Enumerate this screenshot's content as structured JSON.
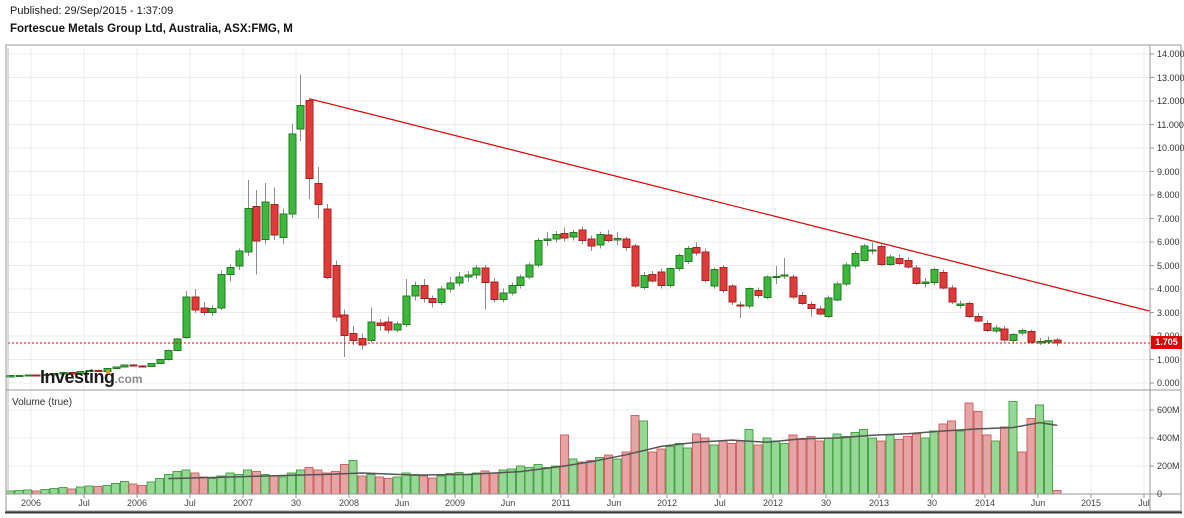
{
  "header": {
    "published": "Published: 29/Sep/2015 - 1:37:09",
    "title": "Fortescue Metals Group Ltd, Australia, ASX:FMG, M"
  },
  "watermark": {
    "brand": "Investing",
    "domain": ".com"
  },
  "volume_pane_label": "Volume (true)",
  "price_axis": {
    "ticks": [
      "14.000",
      "13.000",
      "12.000",
      "11.000",
      "10.000",
      "9.000",
      "8.000",
      "7.000",
      "6.000",
      "5.000",
      "4.000",
      "3.000",
      "2.000",
      "1.000",
      "0.000"
    ],
    "last_price_label": "1.705"
  },
  "volume_axis": {
    "ticks": [
      {
        "label": "600M",
        "value": 600
      },
      {
        "label": "400M",
        "value": 400
      },
      {
        "label": "200M",
        "value": 200
      },
      {
        "label": "0",
        "value": 0
      }
    ]
  },
  "x_axis": {
    "labels": [
      "2006",
      "Jul",
      "2006",
      "Jul",
      "2007",
      "30",
      "2008",
      "Jun",
      "2009",
      "Jun",
      "2011",
      "Jun",
      "2012",
      "Jul",
      "2012",
      "30",
      "2013",
      "30",
      "2014",
      "Jun",
      "2015",
      "Jul"
    ]
  },
  "colors": {
    "candle_up": "#3cb93c",
    "candle_up_border": "#1f7d1f",
    "candle_down": "#e03a3a",
    "candle_down_border": "#a82222",
    "vol_up": "#95d895",
    "vol_up_border": "#4aa54a",
    "vol_down": "#e6a4a4",
    "vol_down_border": "#c66",
    "wick": "#8c8c8c",
    "grid": "#ececec",
    "frame": "#999999",
    "trend": "#dd0000",
    "price_line": "#e00000",
    "tag_bg": "#e00000",
    "ma": "#555555"
  },
  "chart_data": {
    "type": "candlestick+volume",
    "title": "Fortescue Metals Group Ltd, Australia, ASX:FMG, M",
    "interval": "Monthly",
    "price_ylim": [
      0,
      14
    ],
    "volume_ylim_millions": [
      0,
      700
    ],
    "last_price": 1.705,
    "trendline": {
      "start_index": 34,
      "start_price": 12.1,
      "end_price_at_right_edge": 3.06
    },
    "candles_ohlc": [
      [
        0.3,
        0.33,
        0.27,
        0.31
      ],
      [
        0.31,
        0.34,
        0.29,
        0.32
      ],
      [
        0.32,
        0.36,
        0.3,
        0.35
      ],
      [
        0.35,
        0.36,
        0.31,
        0.33
      ],
      [
        0.33,
        0.38,
        0.32,
        0.37
      ],
      [
        0.37,
        0.41,
        0.35,
        0.4
      ],
      [
        0.4,
        0.45,
        0.38,
        0.44
      ],
      [
        0.44,
        0.46,
        0.4,
        0.41
      ],
      [
        0.41,
        0.49,
        0.4,
        0.48
      ],
      [
        0.48,
        0.56,
        0.46,
        0.54
      ],
      [
        0.54,
        0.57,
        0.48,
        0.5
      ],
      [
        0.5,
        0.63,
        0.49,
        0.61
      ],
      [
        0.61,
        0.71,
        0.59,
        0.69
      ],
      [
        0.69,
        0.79,
        0.66,
        0.77
      ],
      [
        0.77,
        0.81,
        0.7,
        0.73
      ],
      [
        0.73,
        0.76,
        0.65,
        0.7
      ],
      [
        0.7,
        0.86,
        0.68,
        0.84
      ],
      [
        0.84,
        1.02,
        0.82,
        0.99
      ],
      [
        0.99,
        1.42,
        0.96,
        1.38
      ],
      [
        1.38,
        1.92,
        1.33,
        1.88
      ],
      [
        1.94,
        3.92,
        1.88,
        3.67
      ],
      [
        3.67,
        4.0,
        2.98,
        3.11
      ],
      [
        3.2,
        3.45,
        2.88,
        3.0
      ],
      [
        3.0,
        3.32,
        2.86,
        3.16
      ],
      [
        3.2,
        4.78,
        3.1,
        4.62
      ],
      [
        4.62,
        5.05,
        4.32,
        4.92
      ],
      [
        4.97,
        5.72,
        4.8,
        5.62
      ],
      [
        5.58,
        8.64,
        5.4,
        7.43
      ],
      [
        7.52,
        8.22,
        4.62,
        6.05
      ],
      [
        6.1,
        8.52,
        5.92,
        7.7
      ],
      [
        7.6,
        8.32,
        6.08,
        6.3
      ],
      [
        6.2,
        7.42,
        5.92,
        7.2
      ],
      [
        7.2,
        11.02,
        7.02,
        10.6
      ],
      [
        10.8,
        13.12,
        10.3,
        11.8
      ],
      [
        12.02,
        12.1,
        7.82,
        8.7
      ],
      [
        8.5,
        9.2,
        7.0,
        7.6
      ],
      [
        7.4,
        7.62,
        4.42,
        4.5
      ],
      [
        5.0,
        5.22,
        2.62,
        2.8
      ],
      [
        2.9,
        3.12,
        1.1,
        2.02
      ],
      [
        2.1,
        2.42,
        1.62,
        1.8
      ],
      [
        1.9,
        2.1,
        1.42,
        1.62
      ],
      [
        1.8,
        3.22,
        1.72,
        2.6
      ],
      [
        2.55,
        2.72,
        2.22,
        2.45
      ],
      [
        2.6,
        2.82,
        2.12,
        2.26
      ],
      [
        2.26,
        2.62,
        2.16,
        2.52
      ],
      [
        2.48,
        4.42,
        2.38,
        3.7
      ],
      [
        3.7,
        4.32,
        3.52,
        4.15
      ],
      [
        4.15,
        4.42,
        3.42,
        3.6
      ],
      [
        3.6,
        3.72,
        3.22,
        3.42
      ],
      [
        3.42,
        4.12,
        3.32,
        4.0
      ],
      [
        4.0,
        4.52,
        3.86,
        4.26
      ],
      [
        4.26,
        4.72,
        4.12,
        4.52
      ],
      [
        4.52,
        4.77,
        4.32,
        4.6
      ],
      [
        4.6,
        5.02,
        4.42,
        4.9
      ],
      [
        4.9,
        5.02,
        3.12,
        4.28
      ],
      [
        4.3,
        4.46,
        3.42,
        3.56
      ],
      [
        3.56,
        4.02,
        3.42,
        3.82
      ],
      [
        3.82,
        4.27,
        3.72,
        4.14
      ],
      [
        4.14,
        4.62,
        4.02,
        4.52
      ],
      [
        4.52,
        5.12,
        4.42,
        5.02
      ],
      [
        5.02,
        6.17,
        4.92,
        6.07
      ],
      [
        6.07,
        6.42,
        5.82,
        6.12
      ],
      [
        6.12,
        6.47,
        5.97,
        6.32
      ],
      [
        6.37,
        6.62,
        6.02,
        6.17
      ],
      [
        6.22,
        6.52,
        6.07,
        6.4
      ],
      [
        6.52,
        6.67,
        5.92,
        6.07
      ],
      [
        6.12,
        6.27,
        5.62,
        5.82
      ],
      [
        5.87,
        6.42,
        5.72,
        6.32
      ],
      [
        6.3,
        6.52,
        5.97,
        6.07
      ],
      [
        6.12,
        6.42,
        5.87,
        6.14
      ],
      [
        6.12,
        6.22,
        5.62,
        5.77
      ],
      [
        5.82,
        5.92,
        4.07,
        4.12
      ],
      [
        4.07,
        4.72,
        3.97,
        4.57
      ],
      [
        4.62,
        4.77,
        4.27,
        4.34
      ],
      [
        4.72,
        4.87,
        4.02,
        4.14
      ],
      [
        4.14,
        4.92,
        4.07,
        4.87
      ],
      [
        4.87,
        5.52,
        4.77,
        5.42
      ],
      [
        5.17,
        5.82,
        5.07,
        5.72
      ],
      [
        5.77,
        5.97,
        5.42,
        5.54
      ],
      [
        5.57,
        5.72,
        4.27,
        4.37
      ],
      [
        4.12,
        4.92,
        4.02,
        4.82
      ],
      [
        4.92,
        5.02,
        3.82,
        3.94
      ],
      [
        4.12,
        4.22,
        3.32,
        3.44
      ],
      [
        3.32,
        3.47,
        2.77,
        3.3
      ],
      [
        3.27,
        4.07,
        3.17,
        4.02
      ],
      [
        3.94,
        4.07,
        3.62,
        3.72
      ],
      [
        3.64,
        4.57,
        3.57,
        4.52
      ],
      [
        4.52,
        4.97,
        4.22,
        4.54
      ],
      [
        4.57,
        5.32,
        4.42,
        4.6
      ],
      [
        4.52,
        4.62,
        3.57,
        3.67
      ],
      [
        3.72,
        3.87,
        3.32,
        3.39
      ],
      [
        3.34,
        3.47,
        2.82,
        3.17
      ],
      [
        3.14,
        3.27,
        2.87,
        2.94
      ],
      [
        2.82,
        3.72,
        2.77,
        3.62
      ],
      [
        3.54,
        4.32,
        3.47,
        4.22
      ],
      [
        4.22,
        5.12,
        4.12,
        5.02
      ],
      [
        4.97,
        5.62,
        4.87,
        5.52
      ],
      [
        5.22,
        5.92,
        5.17,
        5.82
      ],
      [
        5.62,
        5.97,
        5.47,
        5.67
      ],
      [
        5.8,
        5.92,
        4.97,
        5.04
      ],
      [
        5.04,
        5.47,
        4.97,
        5.37
      ],
      [
        5.3,
        5.47,
        5.02,
        5.08
      ],
      [
        5.22,
        5.37,
        4.87,
        4.94
      ],
      [
        4.9,
        5.02,
        4.17,
        4.24
      ],
      [
        4.24,
        4.47,
        4.07,
        4.3
      ],
      [
        4.27,
        4.92,
        4.17,
        4.84
      ],
      [
        4.7,
        4.82,
        3.97,
        4.04
      ],
      [
        4.04,
        4.17,
        3.37,
        3.44
      ],
      [
        3.3,
        3.52,
        3.17,
        3.36
      ],
      [
        3.38,
        3.47,
        2.77,
        2.84
      ],
      [
        2.84,
        2.97,
        2.57,
        2.64
      ],
      [
        2.54,
        2.67,
        2.17,
        2.24
      ],
      [
        2.22,
        2.47,
        2.12,
        2.34
      ],
      [
        2.3,
        2.42,
        1.77,
        1.84
      ],
      [
        1.8,
        2.12,
        1.72,
        2.07
      ],
      [
        2.12,
        2.32,
        2.02,
        2.24
      ],
      [
        2.2,
        2.27,
        1.67,
        1.74
      ],
      [
        1.72,
        1.92,
        1.62,
        1.76
      ],
      [
        1.76,
        1.97,
        1.67,
        1.8
      ],
      [
        1.82,
        1.92,
        1.57,
        1.705
      ]
    ],
    "volumes_millions": [
      20,
      24,
      28,
      22,
      32,
      38,
      45,
      36,
      50,
      58,
      52,
      62,
      75,
      88,
      70,
      60,
      85,
      110,
      140,
      160,
      170,
      150,
      120,
      110,
      130,
      150,
      140,
      170,
      160,
      140,
      130,
      120,
      150,
      170,
      190,
      170,
      150,
      160,
      210,
      240,
      130,
      140,
      120,
      110,
      120,
      150,
      140,
      130,
      115,
      130,
      145,
      155,
      135,
      150,
      165,
      150,
      170,
      180,
      200,
      190,
      210,
      190,
      200,
      420,
      250,
      230,
      240,
      260,
      280,
      250,
      300,
      560,
      520,
      300,
      320,
      340,
      360,
      330,
      430,
      400,
      350,
      380,
      360,
      380,
      460,
      350,
      400,
      380,
      360,
      420,
      390,
      410,
      380,
      400,
      430,
      410,
      440,
      460,
      400,
      380,
      420,
      390,
      410,
      430,
      400,
      450,
      500,
      520,
      450,
      650,
      590,
      420,
      380,
      480,
      660,
      300,
      540,
      635,
      520,
      25
    ],
    "volume_color_overrides": {
      "39": "g",
      "115": "r"
    },
    "volume_ma_points": [
      [
        18,
        110
      ],
      [
        24,
        120
      ],
      [
        30,
        130
      ],
      [
        36,
        140
      ],
      [
        40,
        150
      ],
      [
        46,
        135
      ],
      [
        52,
        140
      ],
      [
        58,
        160
      ],
      [
        63,
        200
      ],
      [
        66,
        230
      ],
      [
        70,
        280
      ],
      [
        74,
        340
      ],
      [
        78,
        370
      ],
      [
        82,
        385
      ],
      [
        86,
        370
      ],
      [
        90,
        395
      ],
      [
        94,
        400
      ],
      [
        98,
        420
      ],
      [
        102,
        430
      ],
      [
        106,
        450
      ],
      [
        110,
        465
      ],
      [
        114,
        475
      ],
      [
        117,
        510
      ],
      [
        119,
        490
      ]
    ]
  }
}
